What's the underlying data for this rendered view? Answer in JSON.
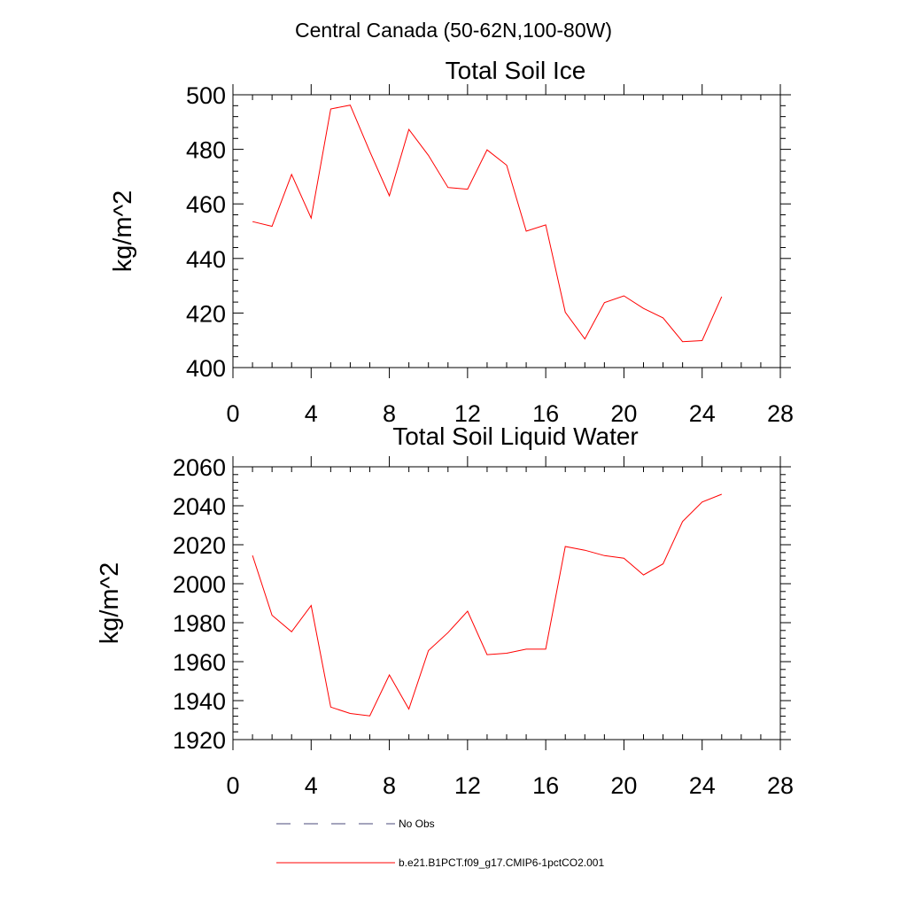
{
  "figure": {
    "title": "Central Canada (50-62N,100-80W)",
    "legend": [
      {
        "label": "No Obs",
        "color": "#4a4a7a",
        "dash": "dashed"
      },
      {
        "label": "b.e21.B1PCT.f09_g17.CMIP6-1pctCO2.001",
        "color": "#ff0000",
        "dash": "solid"
      }
    ]
  },
  "chart_data": [
    {
      "type": "line",
      "title": "Total Soil Ice",
      "ylabel": "kg/m^2",
      "xlabel": "",
      "xlim": [
        0,
        28
      ],
      "ylim": [
        400,
        500
      ],
      "xticks": [
        0,
        4,
        8,
        12,
        16,
        20,
        24,
        28
      ],
      "yticks": [
        400,
        420,
        440,
        460,
        480,
        500
      ],
      "xminor": 1,
      "yminor": 4,
      "grid": false,
      "series": [
        {
          "color": "#ff0000",
          "x": [
            1,
            2,
            3,
            4,
            5,
            6,
            7,
            8,
            9,
            10,
            11,
            12,
            13,
            14,
            15,
            16,
            17,
            18,
            19,
            20,
            21,
            22,
            23,
            24,
            25
          ],
          "y": [
            453.5,
            451.8,
            470.8,
            454.8,
            494.8,
            496.2,
            479.2,
            463.0,
            487.3,
            477.8,
            466.0,
            465.4,
            479.8,
            474.2,
            450.0,
            452.3,
            420.3,
            410.5,
            423.8,
            426.3,
            421.7,
            418.2,
            409.5,
            409.9,
            426.0
          ]
        }
      ]
    },
    {
      "type": "line",
      "title": "Total Soil Liquid Water",
      "ylabel": "kg/m^2",
      "xlabel": "",
      "xlim": [
        0,
        28
      ],
      "ylim": [
        1920,
        2060
      ],
      "xticks": [
        0,
        4,
        8,
        12,
        16,
        20,
        24,
        28
      ],
      "yticks": [
        1920,
        1940,
        1960,
        1980,
        2000,
        2020,
        2040,
        2060
      ],
      "xminor": 1,
      "yminor": 4,
      "grid": false,
      "series": [
        {
          "color": "#ff0000",
          "x": [
            1,
            2,
            3,
            4,
            5,
            6,
            7,
            8,
            9,
            10,
            11,
            12,
            13,
            14,
            15,
            16,
            17,
            18,
            19,
            20,
            21,
            22,
            23,
            24,
            25
          ],
          "y": [
            2014.5,
            1983.8,
            1975.3,
            1988.8,
            1936.7,
            1933.4,
            1932.2,
            1953.2,
            1935.7,
            1965.7,
            1974.9,
            1985.9,
            1963.6,
            1964.3,
            1966.4,
            1966.4,
            2019.1,
            2017.2,
            2014.4,
            2013.1,
            2004.5,
            2010.2,
            2031.9,
            2041.9,
            2045.9
          ]
        }
      ]
    }
  ]
}
